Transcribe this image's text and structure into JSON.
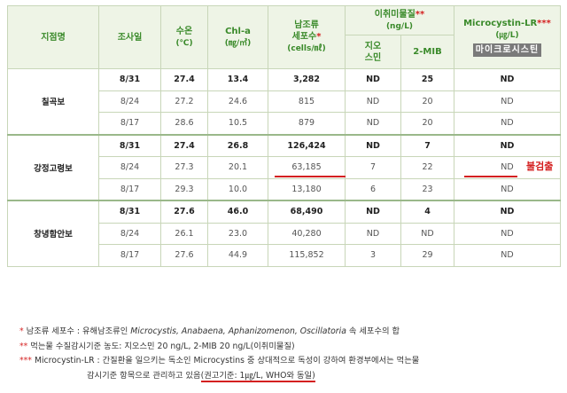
{
  "headers": {
    "site": "지점명",
    "date": "조사일",
    "temp": "수온",
    "temp_unit": "(℃)",
    "chla": "Chl-a",
    "chla_unit": "(㎎/㎥)",
    "cyano_l1": "남조류",
    "cyano_l2": "세포수",
    "cyano_unit": "(cells/㎖)",
    "taste": "이취미물질",
    "taste_unit": "(ng/L)",
    "geosmin_l1": "지오",
    "geosmin_l2": "스민",
    "mib": "2-MIB",
    "mc": "Microcystin-LR",
    "mc_unit": "(㎍/L)",
    "mc_overlay": "마이크로시스틴",
    "cyano_star": "*",
    "taste_star": "**",
    "mc_star": "***"
  },
  "groups": [
    {
      "site": "칠곡보",
      "rows": [
        {
          "date": "8/31",
          "temp": "27.4",
          "chla": "13.4",
          "cells": "3,282",
          "geo": "ND",
          "mib": "25",
          "mc": "ND"
        },
        {
          "date": "8/24",
          "temp": "27.2",
          "chla": "24.6",
          "cells": "815",
          "geo": "ND",
          "mib": "20",
          "mc": "ND"
        },
        {
          "date": "8/17",
          "temp": "28.6",
          "chla": "10.5",
          "cells": "879",
          "geo": "ND",
          "mib": "20",
          "mc": "ND"
        }
      ]
    },
    {
      "site": "강정고령보",
      "rows": [
        {
          "date": "8/31",
          "temp": "27.4",
          "chla": "26.8",
          "cells": "126,424",
          "geo": "ND",
          "mib": "7",
          "mc": "ND"
        },
        {
          "date": "8/24",
          "temp": "27.3",
          "chla": "20.1",
          "cells": "63,185",
          "geo": "7",
          "mib": "22",
          "mc": "ND"
        },
        {
          "date": "8/17",
          "temp": "29.3",
          "chla": "10.0",
          "cells": "13,180",
          "geo": "6",
          "mib": "23",
          "mc": "ND"
        }
      ]
    },
    {
      "site": "창녕함안보",
      "rows": [
        {
          "date": "8/31",
          "temp": "27.6",
          "chla": "46.0",
          "cells": "68,490",
          "geo": "ND",
          "mib": "4",
          "mc": "ND"
        },
        {
          "date": "8/24",
          "temp": "26.1",
          "chla": "23.0",
          "cells": "40,280",
          "geo": "ND",
          "mib": "ND",
          "mc": "ND"
        },
        {
          "date": "8/17",
          "temp": "27.6",
          "chla": "44.9",
          "cells": "115,852",
          "geo": "3",
          "mib": "29",
          "mc": "ND"
        }
      ]
    }
  ],
  "annotation": "불검출",
  "notes": {
    "n1_star": "*",
    "n1_a": "남조류 세포수 : 유해남조류인",
    "n1_species": "Microcystis, Anabaena, Aphanizomenon, Oscillatoria",
    "n1_b": "속 세포수의 합",
    "n2_star": "**",
    "n2": "먹는물 수질감시기준 농도: 지오스민 20 ng/L, 2-MIB 20 ng/L(이취미물질)",
    "n3_star": "***",
    "n3_a": "Microcystin-LR : 간질환을 일으키는 독소인 Microcystins 중 상대적으로 독성이 강하여 환경부에서는 먹는물",
    "n3_b": "감시기준 항목으로 관리하고 있음",
    "n3_guide": "(권고기준: 1㎍/L, WHO와 동일)"
  }
}
